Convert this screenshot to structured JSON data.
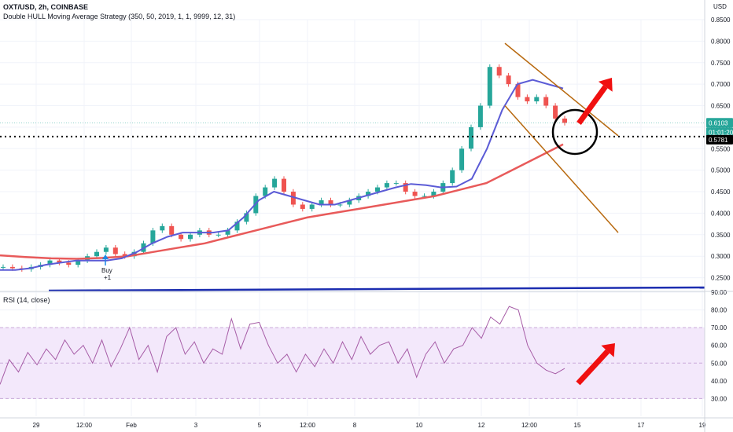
{
  "header": {
    "symbol": "OXT/USD, 2h, COINBASE",
    "strategy": "Double HULL Moving Average Strategy (350, 50, 2019, 1, 1, 9999, 12, 31)",
    "rsi_title": "RSI (14, close)",
    "currency": "USD"
  },
  "price_tags": {
    "last": "0.6103",
    "countdown": "01:01:20",
    "level": "0.5781"
  },
  "buy_marker": {
    "label": "Buy",
    "qty": "+1"
  },
  "colors": {
    "up": "#26a69a",
    "down": "#ef5350",
    "hull_fast": "#5b5bd6",
    "hull_slow": "#e85a5a",
    "channel": "#b8690f",
    "rsi_line": "#a65ca6",
    "rsi_band": "#f3e8fb",
    "arrow": "#f01010",
    "baseline": "#1c2db0"
  },
  "chart_data": [
    {
      "type": "candlestick",
      "ylim": [
        0.22,
        0.85
      ],
      "yticks": [
        "0.8500",
        "0.8000",
        "0.7500",
        "0.7000",
        "0.6500",
        "0.6000",
        "0.5500",
        "0.5000",
        "0.4500",
        "0.4000",
        "0.3500",
        "0.3000",
        "0.2500"
      ],
      "x_labels": [
        "29",
        "12:00",
        "Feb",
        "3",
        "5",
        "12:00",
        "8",
        "10",
        "12",
        "12:00",
        "15",
        "17",
        "19"
      ],
      "level_line": 0.5781,
      "series": [
        {
          "name": "",
          "kind": "price",
          "values": [
            0.275,
            0.272,
            0.27,
            0.275,
            0.28,
            0.29,
            0.285,
            0.28,
            0.29,
            0.3,
            0.31,
            0.32,
            0.305,
            0.3,
            0.31,
            0.33,
            0.36,
            0.37,
            0.35,
            0.34,
            0.35,
            0.36,
            0.35,
            0.35,
            0.36,
            0.38,
            0.4,
            0.44,
            0.46,
            0.48,
            0.45,
            0.42,
            0.41,
            0.42,
            0.43,
            0.42,
            0.42,
            0.43,
            0.44,
            0.45,
            0.46,
            0.47,
            0.47,
            0.45,
            0.44,
            0.44,
            0.45,
            0.47,
            0.5,
            0.55,
            0.6,
            0.65,
            0.74,
            0.72,
            0.7,
            0.67,
            0.66,
            0.67,
            0.65,
            0.62,
            0.61
          ]
        },
        {
          "name": "",
          "kind": "hull_fast",
          "values": [
            0.268,
            0.268,
            0.272,
            0.28,
            0.285,
            0.29,
            0.29,
            0.29,
            0.295,
            0.31,
            0.33,
            0.345,
            0.355,
            0.355,
            0.355,
            0.36,
            0.39,
            0.43,
            0.45,
            0.44,
            0.43,
            0.42,
            0.42,
            0.43,
            0.44,
            0.45,
            0.46,
            0.468,
            0.465,
            0.46,
            0.462,
            0.48,
            0.55,
            0.64,
            0.7,
            0.71,
            0.7,
            0.69
          ]
        },
        {
          "name": "",
          "kind": "hull_slow",
          "values": [
            0.302,
            0.298,
            0.295,
            0.294,
            0.296,
            0.3,
            0.31,
            0.32,
            0.33,
            0.345,
            0.36,
            0.375,
            0.39,
            0.4,
            0.41,
            0.42,
            0.43,
            0.44,
            0.455,
            0.47,
            0.5,
            0.53,
            0.56
          ]
        }
      ],
      "channel": {
        "upper": [
          0.795,
          0.58
        ],
        "lower": [
          0.65,
          0.355
        ]
      }
    },
    {
      "type": "line",
      "title": "RSI (14, close)",
      "ylim": [
        20,
        90
      ],
      "yticks": [
        "90.00",
        "80.00",
        "70.00",
        "60.00",
        "50.00",
        "40.00",
        "30.00"
      ],
      "bands": [
        30,
        50,
        70
      ],
      "series": [
        {
          "name": "",
          "values": [
            38,
            52,
            45,
            56,
            49,
            58,
            52,
            63,
            55,
            60,
            50,
            63,
            48,
            58,
            70,
            52,
            60,
            45,
            65,
            70,
            55,
            62,
            50,
            58,
            55,
            75,
            58,
            72,
            73,
            60,
            50,
            55,
            45,
            55,
            48,
            58,
            50,
            62,
            52,
            65,
            55,
            60,
            62,
            50,
            58,
            42,
            55,
            62,
            50,
            58,
            60,
            70,
            64,
            76,
            72,
            82,
            80,
            60,
            50,
            46,
            44,
            47
          ]
        }
      ]
    }
  ]
}
